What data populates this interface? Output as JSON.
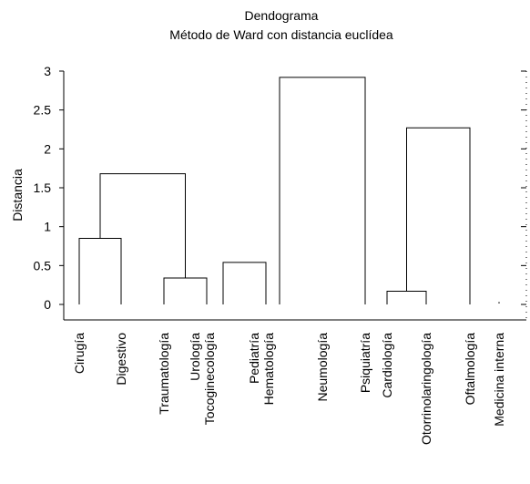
{
  "chart_data": {
    "type": "dendrogram",
    "title": "Dendograma",
    "subtitle": "Método de Ward con distancia euclídea",
    "ylabel": "Distancia",
    "ylim": [
      0,
      3
    ],
    "yticks": [
      "0",
      "0.5",
      "1",
      "1.5",
      "2",
      "2.5",
      "3"
    ],
    "leaves": [
      {
        "line1": "Cirugía",
        "line2": ""
      },
      {
        "line1": "Digestivo",
        "line2": ""
      },
      {
        "line1": "Traumatología",
        "line2": ""
      },
      {
        "line1": "Urología",
        "line2": "Tocoginecología"
      },
      {
        "line1": "Pediatría",
        "line2": "Hematología"
      },
      {
        "line1": "Neumología",
        "line2": ""
      },
      {
        "line1": "Psiquiatría",
        "line2": ""
      },
      {
        "line1": "Cardiología",
        "line2": ""
      },
      {
        "line1": "Otorrinolaringología",
        "line2": ""
      },
      {
        "line1": "Oftalmología",
        "line2": ""
      },
      {
        "line1": "Medicina interna",
        "line2": ""
      }
    ],
    "merges": [
      {
        "left": "leaf:0",
        "right": "leaf:1",
        "height": 0.85
      },
      {
        "left": "leaf:2",
        "right": "leaf:3",
        "height": 0.34
      },
      {
        "left": "node:0",
        "right": "node:1",
        "height": 1.68
      },
      {
        "left": "leaf:4",
        "right": "leaf:4b",
        "height": 0.54
      },
      {
        "left": "leaf:5",
        "right": "leaf:6",
        "height": 2.92
      },
      {
        "left": "leaf:7",
        "right": "leaf:8",
        "height": 0.17
      },
      {
        "left": "node:5",
        "right": "leaf:9",
        "height": 2.27
      }
    ],
    "singletons": [
      {
        "leaf": 10,
        "height": 0.02
      }
    ],
    "grid": false
  }
}
